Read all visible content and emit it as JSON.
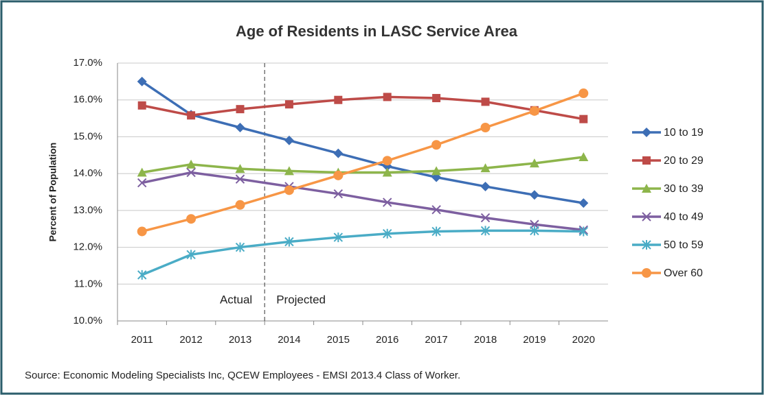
{
  "chart_data": {
    "type": "line",
    "title": "Age of Residents in LASC Service Area",
    "y_label": "Percent of Population",
    "source": "Source: Economic Modeling Specialists Inc, QCEW Employees - EMSI 2013.4 Class of Worker.",
    "annotations": [
      "Actual",
      "Projected"
    ],
    "categories": [
      "2011",
      "2012",
      "2013",
      "2014",
      "2015",
      "2016",
      "2017",
      "2018",
      "2019",
      "2020"
    ],
    "ylim": [
      10,
      17
    ],
    "yticks": [
      {
        "value": 10,
        "label": "10.0%"
      },
      {
        "value": 11,
        "label": "11.0%"
      },
      {
        "value": 12,
        "label": "12.0%"
      },
      {
        "value": 13,
        "label": "13.0%"
      },
      {
        "value": 14,
        "label": "14.0%"
      },
      {
        "value": 15,
        "label": "15.0%"
      },
      {
        "value": 16,
        "label": "16.0%"
      },
      {
        "value": 17,
        "label": "17.0%"
      }
    ],
    "grid": true,
    "legend": "right",
    "series": [
      {
        "name": "10 to 19",
        "color": "#3d6eb5",
        "marker": "diamond",
        "values": [
          16.5,
          15.6,
          15.25,
          14.9,
          14.55,
          14.2,
          13.9,
          13.65,
          13.42,
          13.2
        ]
      },
      {
        "name": "20 to 29",
        "color": "#be4b48",
        "marker": "square",
        "values": [
          15.85,
          15.58,
          15.75,
          15.88,
          16.0,
          16.08,
          16.05,
          15.95,
          15.72,
          15.48
        ]
      },
      {
        "name": "30 to 39",
        "color": "#8db54b",
        "marker": "triangle",
        "values": [
          14.03,
          14.25,
          14.13,
          14.07,
          14.03,
          14.03,
          14.07,
          14.15,
          14.28,
          14.45
        ]
      },
      {
        "name": "40 to 49",
        "color": "#7d5fa0",
        "marker": "x",
        "values": [
          13.75,
          14.03,
          13.85,
          13.65,
          13.45,
          13.22,
          13.02,
          12.8,
          12.62,
          12.47
        ]
      },
      {
        "name": "50 to 59",
        "color": "#4aacc6",
        "marker": "star",
        "values": [
          11.25,
          11.8,
          12.0,
          12.15,
          12.27,
          12.37,
          12.43,
          12.45,
          12.45,
          12.43
        ]
      },
      {
        "name": "Over 60",
        "color": "#f79646",
        "marker": "circle",
        "values": [
          12.43,
          12.77,
          13.15,
          13.55,
          13.95,
          14.35,
          14.78,
          15.25,
          15.7,
          16.18
        ]
      }
    ]
  }
}
